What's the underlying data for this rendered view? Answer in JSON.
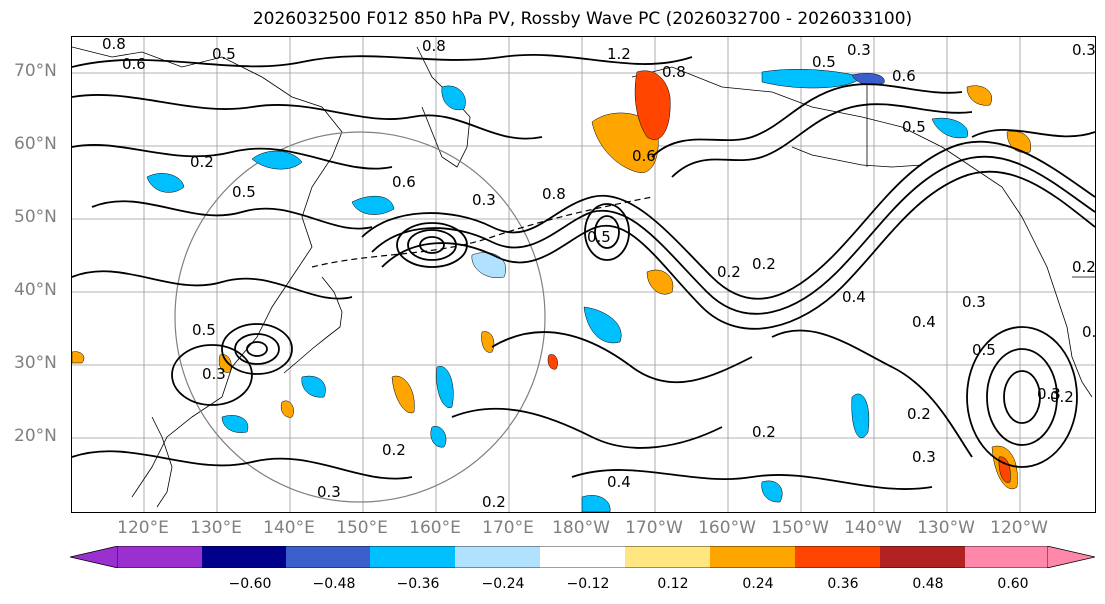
{
  "title": "2026032500 F012 850 hPa PV, Rossby Wave PC (2026032700 - 2026033100)",
  "lat_labels": [
    "70°N",
    "60°N",
    "50°N",
    "40°N",
    "30°N",
    "20°N"
  ],
  "lon_labels": [
    "120°E",
    "130°E",
    "140°E",
    "150°E",
    "160°E",
    "170°E",
    "180°W",
    "170°W",
    "160°W",
    "150°W",
    "140°W",
    "130°W",
    "120°W"
  ],
  "colorbar": {
    "tick_labels": [
      "−0.60",
      "−0.48",
      "−0.36",
      "−0.24",
      "−0.12",
      "0.12",
      "0.24",
      "0.36",
      "0.48",
      "0.60"
    ],
    "colors": [
      "#9b30d0",
      "#00008b",
      "#3a5fcd",
      "#00bfff",
      "#b0e2ff",
      "#ffffff",
      "#ffe680",
      "#ffa500",
      "#ff4500",
      "#b22222",
      "#ff88aa"
    ]
  },
  "contour_labels": [
    "0.8",
    "0.6",
    "0.5",
    "0.8",
    "0.3",
    "1.2",
    "0.8",
    "0.5",
    "0.6",
    "0.3",
    "0.2",
    "0.5",
    "0.6",
    "0.3",
    "0.6",
    "0.8",
    "0.5",
    "0.2",
    "0.4",
    "0.2",
    "0.5",
    "0.3",
    "0.5",
    "0.2",
    "0.3",
    "0.2",
    "0.4",
    "0.5",
    "0.3",
    "0.2",
    "0.3",
    "0.2",
    "0.4",
    "0.2",
    "0.3",
    "0.2",
    "0.3"
  ]
}
